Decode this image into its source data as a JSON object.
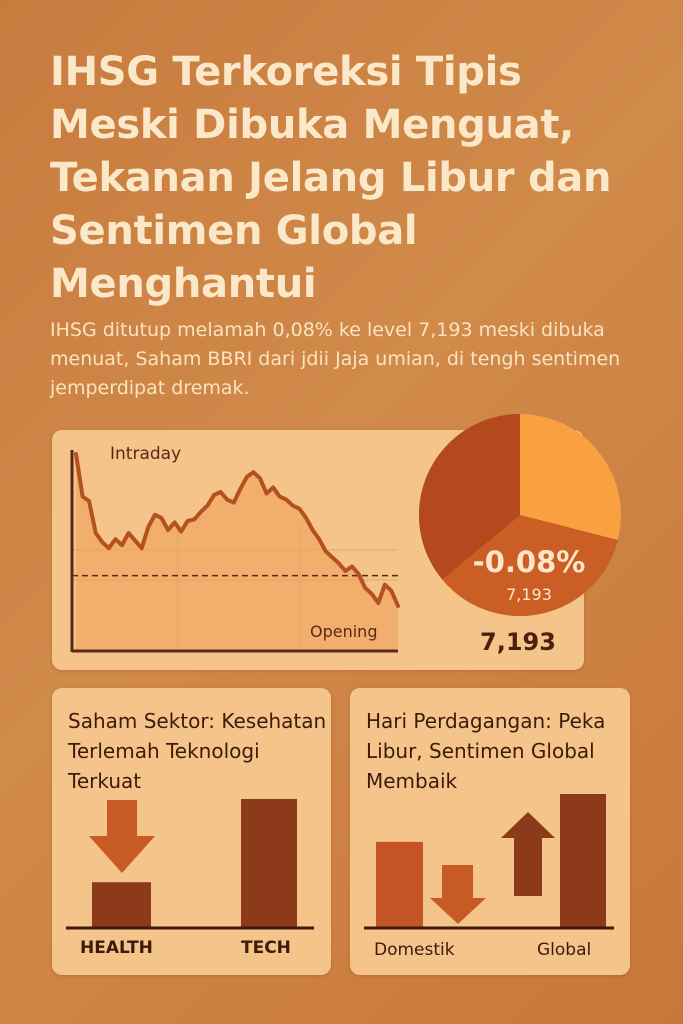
{
  "headline": "IHSG Terkoreksi Tipis Meski Dibuka Menguat, Tekanan Jelang Libur dan Sentimen Global Menghantui",
  "lede": "IHSG ditutup melamah 0,08% ke level 7,193 meski dibuka menuat, Saham BBRI dari  jdii Jaja umian, di tengh sentimen jemperdipat dremak.",
  "intraday": {
    "label": "Intraday",
    "opening_label": "Opening",
    "close_value": "7,193",
    "series": [
      100,
      72,
      69,
      48,
      42,
      38,
      44,
      40,
      48,
      43,
      38,
      52,
      60,
      58,
      50,
      55,
      49,
      56,
      57,
      62,
      66,
      73,
      75,
      70,
      68,
      77,
      85,
      88,
      84,
      74,
      78,
      72,
      70,
      66,
      64,
      58,
      50,
      44,
      36,
      32,
      28,
      23,
      26,
      21,
      12,
      8,
      2,
      14,
      10,
      0
    ],
    "opening_level": 20,
    "colors": {
      "line": "#b5501f",
      "fill": "#ee9d55",
      "axis": "#5a2a16"
    }
  },
  "pie": {
    "change": "-0.08%",
    "value": "7,193",
    "slices": [
      {
        "share": 0.29,
        "color": "#f9a140"
      },
      {
        "share": 0.35,
        "color": "#cb5e24"
      },
      {
        "share": 0.36,
        "color": "#b4491d"
      }
    ]
  },
  "sector": {
    "title": "Saham Sektor: Kesehatan Terlemah Teknologi Terkuat",
    "categories": [
      "HEALTH",
      "TECH"
    ],
    "values": [
      0.35,
      1.0
    ],
    "arrow": "down-arrow-icon",
    "colors": {
      "bar": "#8c3a1a",
      "arrow": "#c85a26"
    }
  },
  "trading": {
    "title": "Hari Perdagangan: Peka Libur, Sentimen Global Membaik",
    "categories": [
      "Domestik",
      "Global"
    ],
    "values": [
      0.64,
      1.0
    ],
    "arrows": [
      "down-arrow-icon",
      "up-arrow-icon"
    ],
    "colors": {
      "bar_domestic": "#c45423",
      "bar_global": "#8c3a1a",
      "arrow_down": "#c85a26",
      "arrow_up": "#8c3a1a"
    }
  }
}
